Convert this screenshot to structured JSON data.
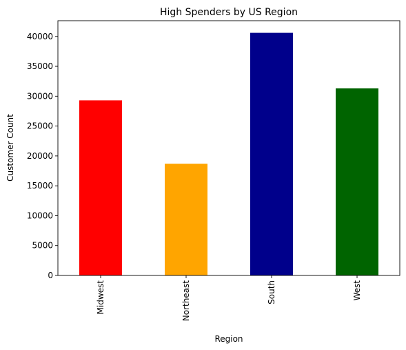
{
  "chart_data": {
    "type": "bar",
    "title": "High Spenders by US Region",
    "xlabel": "Region",
    "ylabel": "Customer Count",
    "categories": [
      "Midwest",
      "Northeast",
      "South",
      "West"
    ],
    "values": [
      29300,
      18700,
      40600,
      31300
    ],
    "colors": [
      "#ff0000",
      "#ffa500",
      "#00008b",
      "#006400"
    ],
    "ylim": [
      0,
      42630
    ],
    "yticks": [
      0,
      5000,
      10000,
      15000,
      20000,
      25000,
      30000,
      35000,
      40000
    ],
    "grid": false,
    "legend": "none"
  }
}
